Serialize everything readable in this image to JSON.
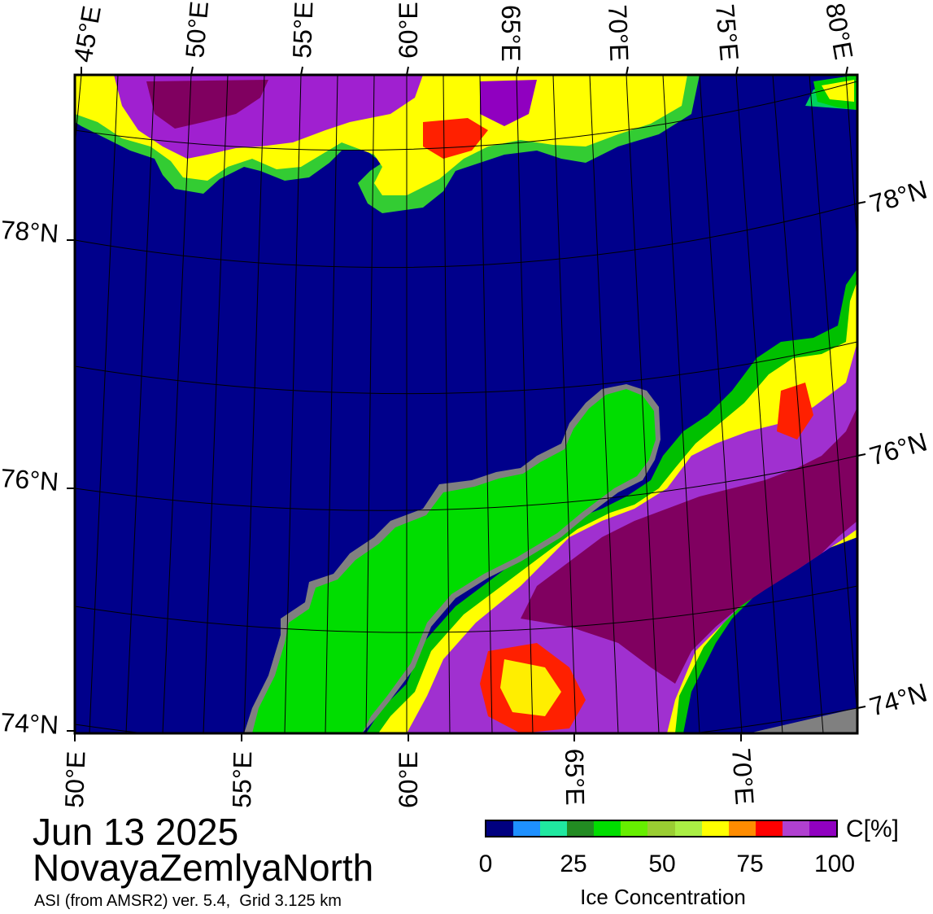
{
  "map": {
    "date": "Jun 13 2025",
    "region": "NovayaZemlyaNorth",
    "source": "ASI (from AMSR2) ver. 5.4,  Grid 3.125 km",
    "top_lon_labels": [
      "45°E",
      "50°E",
      "55°E",
      "60°E",
      "65°E",
      "70°E",
      "75°E",
      "80°E"
    ],
    "bottom_lon_labels": [
      "50°E",
      "55°E",
      "60°E",
      "65°E",
      "70°E"
    ],
    "left_lat_labels": [
      "78°N",
      "76°N",
      "74°N"
    ],
    "right_lat_labels": [
      "78°N",
      "76°N",
      "74°N"
    ],
    "colors": {
      "ocean": "#00008b",
      "land": "#00dd00",
      "coast": "#808080",
      "high_ice": "#800060",
      "frame": "#000000"
    }
  },
  "colorbar": {
    "title": "Ice Concentration",
    "unit": "C[%]",
    "ticks": [
      "0",
      "25",
      "50",
      "75",
      "100"
    ],
    "colors": [
      "#000080",
      "#1e90ff",
      "#20e8a0",
      "#228b22",
      "#00dd00",
      "#66ee00",
      "#9acd32",
      "#aaee44",
      "#ffff00",
      "#ff8c00",
      "#ff0000",
      "#b040d0",
      "#9000c0"
    ]
  }
}
